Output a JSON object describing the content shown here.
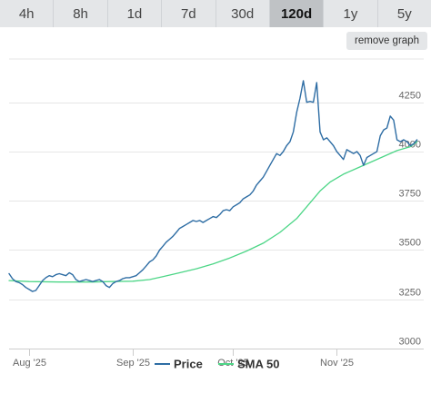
{
  "range_tabs": [
    {
      "label": "4h",
      "active": false
    },
    {
      "label": "8h",
      "active": false
    },
    {
      "label": "1d",
      "active": false
    },
    {
      "label": "7d",
      "active": false
    },
    {
      "label": "30d",
      "active": false
    },
    {
      "label": "120d",
      "active": true
    },
    {
      "label": "1y",
      "active": false
    },
    {
      "label": "5y",
      "active": false
    }
  ],
  "remove_graph_label": "remove graph",
  "chart_data": {
    "type": "line",
    "title": "",
    "xlabel": "",
    "ylabel": "",
    "y_ticks": [
      3000,
      3250,
      3500,
      3750,
      4000,
      4250
    ],
    "y_tick_labels": [
      "3000",
      "3250",
      "3500",
      "3750",
      "4000",
      "4250"
    ],
    "ylim": [
      3000,
      4470
    ],
    "xlim": [
      "2025-07-26",
      "2025-11-27"
    ],
    "x_ticks": [
      {
        "date": "2025-08-01",
        "label": "Aug '25"
      },
      {
        "date": "2025-09-01",
        "label": "Sep '25"
      },
      {
        "date": "2025-10-01",
        "label": "Oct '25"
      },
      {
        "date": "2025-11-01",
        "label": "Nov '25"
      }
    ],
    "grid": true,
    "legend_position": "bottom-center",
    "series": [
      {
        "name": "Price",
        "color": "#2e6da4",
        "points": [
          [
            "2025-07-26",
            3380
          ],
          [
            "2025-07-27",
            3355
          ],
          [
            "2025-07-28",
            3340
          ],
          [
            "2025-07-29",
            3335
          ],
          [
            "2025-07-30",
            3325
          ],
          [
            "2025-07-31",
            3310
          ],
          [
            "2025-08-01",
            3300
          ],
          [
            "2025-08-02",
            3290
          ],
          [
            "2025-08-03",
            3295
          ],
          [
            "2025-08-04",
            3320
          ],
          [
            "2025-08-05",
            3345
          ],
          [
            "2025-08-06",
            3360
          ],
          [
            "2025-08-07",
            3370
          ],
          [
            "2025-08-08",
            3365
          ],
          [
            "2025-08-09",
            3375
          ],
          [
            "2025-08-10",
            3380
          ],
          [
            "2025-08-11",
            3375
          ],
          [
            "2025-08-12",
            3370
          ],
          [
            "2025-08-13",
            3385
          ],
          [
            "2025-08-14",
            3375
          ],
          [
            "2025-08-15",
            3350
          ],
          [
            "2025-08-16",
            3340
          ],
          [
            "2025-08-17",
            3345
          ],
          [
            "2025-08-18",
            3350
          ],
          [
            "2025-08-19",
            3345
          ],
          [
            "2025-08-20",
            3340
          ],
          [
            "2025-08-21",
            3345
          ],
          [
            "2025-08-22",
            3350
          ],
          [
            "2025-08-23",
            3340
          ],
          [
            "2025-08-24",
            3320
          ],
          [
            "2025-08-25",
            3310
          ],
          [
            "2025-08-26",
            3330
          ],
          [
            "2025-08-27",
            3340
          ],
          [
            "2025-08-28",
            3345
          ],
          [
            "2025-08-29",
            3355
          ],
          [
            "2025-08-30",
            3360
          ],
          [
            "2025-08-31",
            3360
          ],
          [
            "2025-09-01",
            3365
          ],
          [
            "2025-09-02",
            3370
          ],
          [
            "2025-09-03",
            3385
          ],
          [
            "2025-09-04",
            3400
          ],
          [
            "2025-09-05",
            3420
          ],
          [
            "2025-09-06",
            3440
          ],
          [
            "2025-09-07",
            3450
          ],
          [
            "2025-09-08",
            3470
          ],
          [
            "2025-09-09",
            3500
          ],
          [
            "2025-09-10",
            3520
          ],
          [
            "2025-09-11",
            3540
          ],
          [
            "2025-09-12",
            3555
          ],
          [
            "2025-09-13",
            3570
          ],
          [
            "2025-09-14",
            3590
          ],
          [
            "2025-09-15",
            3610
          ],
          [
            "2025-09-16",
            3620
          ],
          [
            "2025-09-17",
            3630
          ],
          [
            "2025-09-18",
            3640
          ],
          [
            "2025-09-19",
            3650
          ],
          [
            "2025-09-20",
            3645
          ],
          [
            "2025-09-21",
            3650
          ],
          [
            "2025-09-22",
            3640
          ],
          [
            "2025-09-23",
            3650
          ],
          [
            "2025-09-24",
            3660
          ],
          [
            "2025-09-25",
            3670
          ],
          [
            "2025-09-26",
            3665
          ],
          [
            "2025-09-27",
            3680
          ],
          [
            "2025-09-28",
            3700
          ],
          [
            "2025-09-29",
            3705
          ],
          [
            "2025-09-30",
            3700
          ],
          [
            "2025-10-01",
            3720
          ],
          [
            "2025-10-02",
            3730
          ],
          [
            "2025-10-03",
            3740
          ],
          [
            "2025-10-04",
            3760
          ],
          [
            "2025-10-05",
            3770
          ],
          [
            "2025-10-06",
            3780
          ],
          [
            "2025-10-07",
            3800
          ],
          [
            "2025-10-08",
            3830
          ],
          [
            "2025-10-09",
            3850
          ],
          [
            "2025-10-10",
            3870
          ],
          [
            "2025-10-11",
            3900
          ],
          [
            "2025-10-12",
            3930
          ],
          [
            "2025-10-13",
            3960
          ],
          [
            "2025-10-14",
            3990
          ],
          [
            "2025-10-15",
            3980
          ],
          [
            "2025-10-16",
            4000
          ],
          [
            "2025-10-17",
            4030
          ],
          [
            "2025-10-18",
            4050
          ],
          [
            "2025-10-19",
            4100
          ],
          [
            "2025-10-20",
            4200
          ],
          [
            "2025-10-21",
            4270
          ],
          [
            "2025-10-22",
            4360
          ],
          [
            "2025-10-23",
            4250
          ],
          [
            "2025-10-24",
            4255
          ],
          [
            "2025-10-25",
            4250
          ],
          [
            "2025-10-26",
            4350
          ],
          [
            "2025-10-27",
            4100
          ],
          [
            "2025-10-28",
            4060
          ],
          [
            "2025-10-29",
            4070
          ],
          [
            "2025-10-30",
            4050
          ],
          [
            "2025-10-31",
            4030
          ],
          [
            "2025-11-01",
            4000
          ],
          [
            "2025-11-02",
            3980
          ],
          [
            "2025-11-03",
            3960
          ],
          [
            "2025-11-04",
            4010
          ],
          [
            "2025-11-05",
            4000
          ],
          [
            "2025-11-06",
            3990
          ],
          [
            "2025-11-07",
            4000
          ],
          [
            "2025-11-08",
            3980
          ],
          [
            "2025-11-09",
            3930
          ],
          [
            "2025-11-10",
            3970
          ],
          [
            "2025-11-11",
            3980
          ],
          [
            "2025-11-12",
            3990
          ],
          [
            "2025-11-13",
            4000
          ],
          [
            "2025-11-14",
            4080
          ],
          [
            "2025-11-15",
            4110
          ],
          [
            "2025-11-16",
            4120
          ],
          [
            "2025-11-17",
            4180
          ],
          [
            "2025-11-18",
            4160
          ],
          [
            "2025-11-19",
            4060
          ],
          [
            "2025-11-20",
            4050
          ],
          [
            "2025-11-21",
            4060
          ],
          [
            "2025-11-22",
            4050
          ],
          [
            "2025-11-23",
            4030
          ],
          [
            "2025-11-24",
            4040
          ],
          [
            "2025-11-25",
            4060
          ]
        ]
      },
      {
        "name": "SMA 50",
        "color": "#4dd687",
        "points": [
          [
            "2025-07-26",
            3345
          ],
          [
            "2025-08-01",
            3340
          ],
          [
            "2025-08-10",
            3338
          ],
          [
            "2025-08-20",
            3338
          ],
          [
            "2025-08-25",
            3340
          ],
          [
            "2025-09-01",
            3342
          ],
          [
            "2025-09-06",
            3350
          ],
          [
            "2025-09-10",
            3365
          ],
          [
            "2025-09-15",
            3385
          ],
          [
            "2025-09-20",
            3405
          ],
          [
            "2025-09-25",
            3430
          ],
          [
            "2025-09-30",
            3460
          ],
          [
            "2025-10-05",
            3495
          ],
          [
            "2025-10-10",
            3535
          ],
          [
            "2025-10-15",
            3590
          ],
          [
            "2025-10-20",
            3660
          ],
          [
            "2025-10-24",
            3740
          ],
          [
            "2025-10-27",
            3800
          ],
          [
            "2025-10-30",
            3845
          ],
          [
            "2025-11-03",
            3885
          ],
          [
            "2025-11-07",
            3915
          ],
          [
            "2025-11-11",
            3945
          ],
          [
            "2025-11-15",
            3975
          ],
          [
            "2025-11-19",
            4005
          ],
          [
            "2025-11-23",
            4025
          ],
          [
            "2025-11-25",
            4050
          ]
        ]
      }
    ]
  }
}
